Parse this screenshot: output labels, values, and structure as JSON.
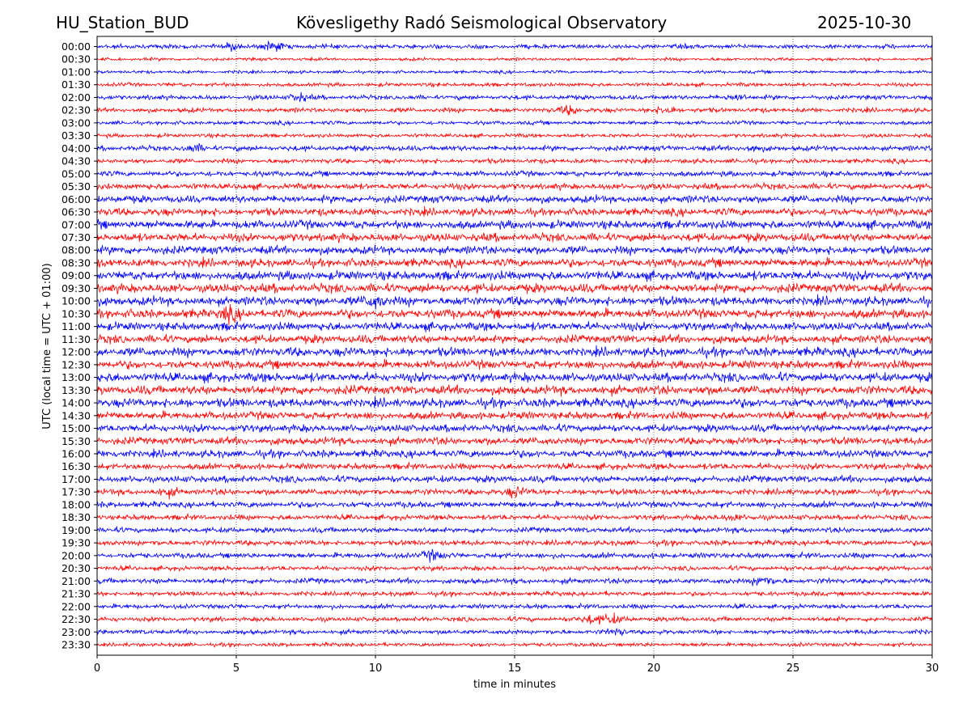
{
  "header": {
    "station": "HU_Station_BUD",
    "title": "Kövesligethy Radó Seismological Observatory",
    "date": "2025-10-30"
  },
  "chart_data": {
    "type": "line",
    "title": "Kövesligethy Radó Seismological Observatory",
    "xlabel": "time in minutes",
    "ylabel": "UTC (local time = UTC + 01:00)",
    "xlim": [
      0,
      30
    ],
    "xticks": [
      "0",
      "5",
      "10",
      "15",
      "20",
      "25",
      "30"
    ],
    "grid": "vertical dotted",
    "colors": [
      "#0000ff",
      "#ff0000"
    ],
    "rows": [
      "00:00",
      "00:30",
      "01:00",
      "01:30",
      "02:00",
      "02:30",
      "03:00",
      "03:30",
      "04:00",
      "04:30",
      "05:00",
      "05:30",
      "06:00",
      "06:30",
      "07:00",
      "07:30",
      "08:00",
      "08:30",
      "09:00",
      "09:30",
      "10:00",
      "10:30",
      "11:00",
      "11:30",
      "12:00",
      "12:30",
      "13:00",
      "13:30",
      "14:00",
      "14:30",
      "15:00",
      "15:30",
      "16:00",
      "16:30",
      "17:00",
      "17:30",
      "18:00",
      "18:30",
      "19:00",
      "19:30",
      "20:00",
      "20:30",
      "21:00",
      "21:30",
      "22:00",
      "22:30",
      "23:00",
      "23:30"
    ],
    "noise_level": [
      3,
      2,
      2,
      2.5,
      3,
      3,
      2.5,
      2.5,
      3.5,
      3,
      3.5,
      4,
      5,
      5,
      5.5,
      5.5,
      5.5,
      5.5,
      6,
      6,
      6,
      6,
      5.5,
      5.5,
      6,
      5.5,
      6,
      6,
      6,
      5,
      5,
      5,
      5,
      4,
      4.5,
      4,
      4,
      3.5,
      3.5,
      3.5,
      3.5,
      3,
      3.5,
      3,
      3,
      3,
      3,
      2.5
    ],
    "events": [
      {
        "row": 0,
        "minute": 6.3,
        "amp": 6
      },
      {
        "row": 0,
        "minute": 5.0,
        "amp": 4
      },
      {
        "row": 4,
        "minute": 7.2,
        "amp": 5
      },
      {
        "row": 4,
        "minute": 23.0,
        "amp": 4
      },
      {
        "row": 5,
        "minute": 17.0,
        "amp": 6
      },
      {
        "row": 5,
        "minute": 20.5,
        "amp": 5
      },
      {
        "row": 8,
        "minute": 3.5,
        "amp": 4
      },
      {
        "row": 8,
        "minute": 23.5,
        "amp": 4
      },
      {
        "row": 20,
        "minute": 10.0,
        "amp": 8
      },
      {
        "row": 21,
        "minute": 4.7,
        "amp": 7
      },
      {
        "row": 35,
        "minute": 2.5,
        "amp": 4
      },
      {
        "row": 35,
        "minute": 15.0,
        "amp": 6
      },
      {
        "row": 37,
        "minute": 22.8,
        "amp": 4
      },
      {
        "row": 40,
        "minute": 12.0,
        "amp": 6
      },
      {
        "row": 42,
        "minute": 23.9,
        "amp": 7
      },
      {
        "row": 45,
        "minute": 17.8,
        "amp": 6
      },
      {
        "row": 45,
        "minute": 18.5,
        "amp": 6
      },
      {
        "row": 46,
        "minute": 18.7,
        "amp": 4
      }
    ]
  }
}
